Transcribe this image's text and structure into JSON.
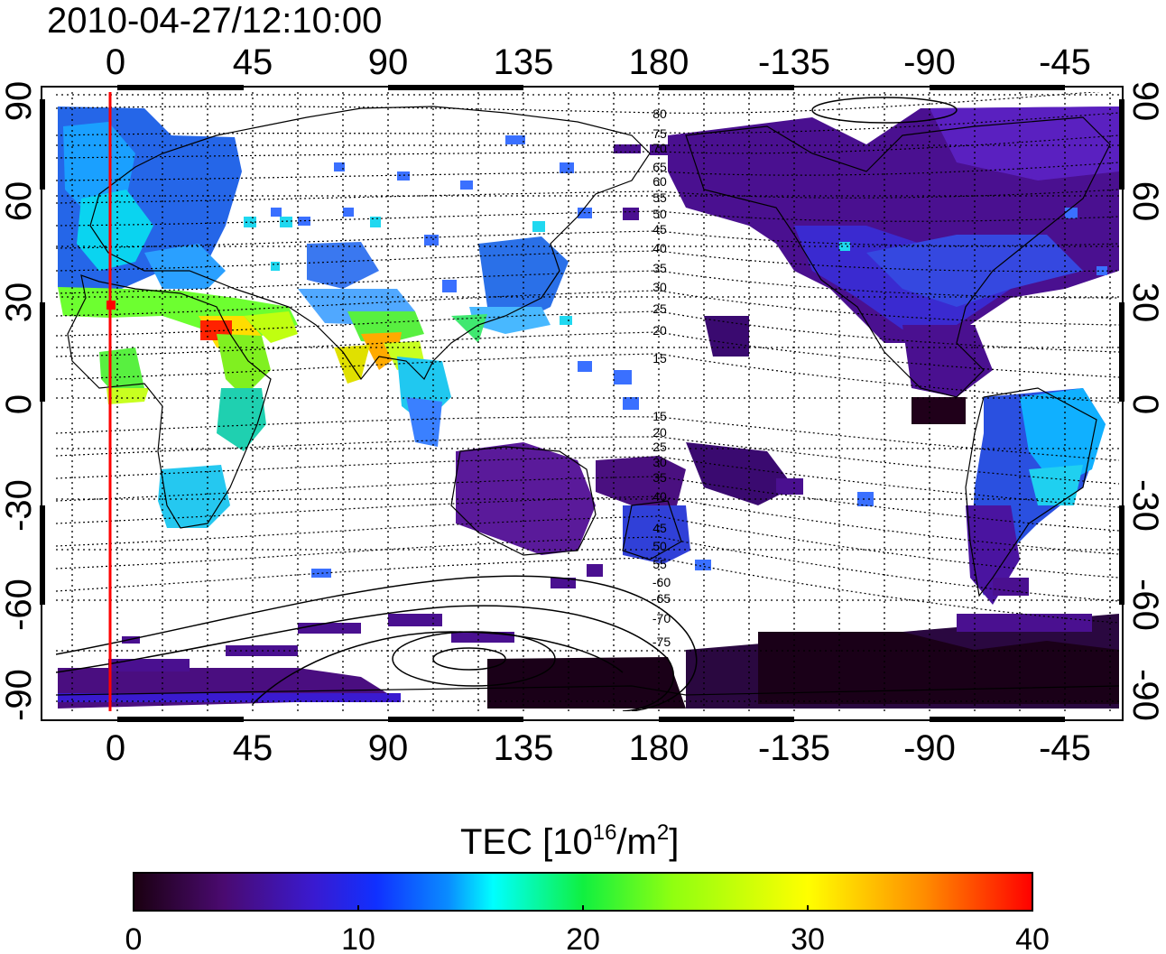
{
  "title": "2010-04-27/12:10:00",
  "top_ticks": [
    "0",
    "45",
    "90",
    "135",
    "180",
    "-135",
    "-90",
    "-45"
  ],
  "bottom_ticks": [
    "0",
    "45",
    "90",
    "135",
    "180",
    "-135",
    "-90",
    "-45"
  ],
  "left_ticks": [
    "90",
    "60",
    "30",
    "0",
    "-30",
    "-60",
    "-90"
  ],
  "right_ticks": [
    "90",
    "60",
    "30",
    "0",
    "-30",
    "-60",
    "-90"
  ],
  "contour_labels_upper": [
    "80",
    "75",
    "70",
    "65",
    "60",
    "55",
    "50",
    "45",
    "40",
    "35",
    "30",
    "25",
    "20",
    "15"
  ],
  "contour_labels_lower": [
    "15",
    "20",
    "25",
    "30",
    "35",
    "40",
    "45",
    "50",
    "55",
    "-60",
    "-65",
    "-70",
    "-75"
  ],
  "colorbar": {
    "label_main": "TEC  [10",
    "label_sup1": "16",
    "label_mid": "/m",
    "label_sup2": "2",
    "label_end": "]",
    "ticks": [
      "0",
      "10",
      "20",
      "30",
      "40"
    ],
    "min": 0,
    "max": 40,
    "colors": [
      "#1a0010",
      "#5a0f8a",
      "#2a2ad8",
      "#0a8cff",
      "#00ffff",
      "#20ff40",
      "#ffff00",
      "#ff8c00",
      "#ff0000"
    ]
  },
  "terminator_line_color": "#ff0000"
}
